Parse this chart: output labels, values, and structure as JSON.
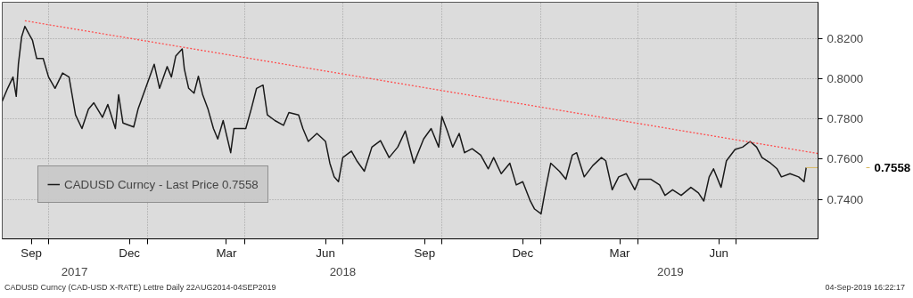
{
  "chart_data": {
    "type": "line",
    "x": [
      "2017-08-19",
      "2017-08-24",
      "2017-08-29",
      "2017-09-01",
      "2017-09-03",
      "2017-09-06",
      "2017-09-09",
      "2017-09-13",
      "2017-09-16",
      "2017-09-20",
      "2017-09-26",
      "2017-10-01",
      "2017-10-07",
      "2017-10-14",
      "2017-10-20",
      "2017-10-26",
      "2017-11-01",
      "2017-11-07",
      "2017-11-12",
      "2017-11-20",
      "2017-11-25",
      "2017-12-02",
      "2017-12-05",
      "2017-12-09",
      "2017-12-19",
      "2017-12-23",
      "2017-12-30",
      "2018-01-07",
      "2018-01-12",
      "2018-01-19",
      "2018-01-23",
      "2018-01-27",
      "2018-02-02",
      "2018-02-04",
      "2018-02-08",
      "2018-02-13",
      "2018-02-17",
      "2018-02-21",
      "2018-02-26",
      "2018-03-03",
      "2018-03-07",
      "2018-03-12",
      "2018-03-19",
      "2018-03-22",
      "2018-04-02",
      "2018-04-07",
      "2018-04-12",
      "2018-04-18",
      "2018-04-22",
      "2018-04-29",
      "2018-05-07",
      "2018-05-12",
      "2018-05-21",
      "2018-05-25",
      "2018-05-30",
      "2018-06-07",
      "2018-06-15",
      "2018-06-19",
      "2018-06-23",
      "2018-06-27",
      "2018-07-01",
      "2018-07-09",
      "2018-07-14",
      "2018-07-21",
      "2018-07-28",
      "2018-08-05",
      "2018-08-13",
      "2018-08-21",
      "2018-08-28",
      "2018-09-05",
      "2018-09-14",
      "2018-09-21",
      "2018-09-28",
      "2018-10-01",
      "2018-10-06",
      "2018-10-11",
      "2018-10-17",
      "2018-10-22",
      "2018-10-29",
      "2018-11-06",
      "2018-11-13",
      "2018-11-18",
      "2018-11-25",
      "2018-12-03",
      "2018-12-09",
      "2018-12-15",
      "2018-12-22",
      "2018-12-26",
      "2019-01-01",
      "2019-01-05",
      "2019-01-10",
      "2019-01-18",
      "2019-01-24",
      "2019-01-30",
      "2019-02-03",
      "2019-02-10",
      "2019-02-18",
      "2019-02-26",
      "2019-03-02",
      "2019-03-08",
      "2019-03-14",
      "2019-03-21",
      "2019-03-29",
      "2019-04-02",
      "2019-04-13",
      "2019-04-21",
      "2019-04-26",
      "2019-05-03",
      "2019-05-11",
      "2019-05-20",
      "2019-05-27",
      "2019-06-01",
      "2019-06-06",
      "2019-06-10",
      "2019-06-17",
      "2019-06-22",
      "2019-06-30",
      "2019-07-07",
      "2019-07-14",
      "2019-07-20",
      "2019-07-25",
      "2019-08-02",
      "2019-08-08",
      "2019-08-12",
      "2019-08-20",
      "2019-08-28",
      "2019-09-02",
      "2019-09-04"
    ],
    "series": [
      {
        "name": "CADUSD Curncy - Last Price 0.7558",
        "color": "#1a1a1a",
        "values": [
          0.7888,
          0.7952,
          0.8008,
          0.7912,
          0.8072,
          0.8208,
          0.826,
          0.822,
          0.8192,
          0.81,
          0.81,
          0.8008,
          0.7952,
          0.8028,
          0.8008,
          0.782,
          0.7752,
          0.7848,
          0.788,
          0.7808,
          0.7872,
          0.7752,
          0.792,
          0.778,
          0.776,
          0.7848,
          0.7952,
          0.8072,
          0.7952,
          0.806,
          0.8008,
          0.8112,
          0.8148,
          0.8048,
          0.7952,
          0.7928,
          0.8012,
          0.792,
          0.7848,
          0.7752,
          0.77,
          0.7792,
          0.7632,
          0.7752,
          0.7752,
          0.7848,
          0.7952,
          0.7968,
          0.782,
          0.7792,
          0.7768,
          0.7832,
          0.782,
          0.7752,
          0.7688,
          0.7728,
          0.7688,
          0.758,
          0.7512,
          0.7488,
          0.7608,
          0.764,
          0.7592,
          0.754,
          0.766,
          0.7692,
          0.7608,
          0.766,
          0.774,
          0.758,
          0.77,
          0.7752,
          0.766,
          0.7812,
          0.774,
          0.766,
          0.7728,
          0.7632,
          0.7652,
          0.762,
          0.7552,
          0.7608,
          0.7528,
          0.758,
          0.7472,
          0.7488,
          0.7392,
          0.7352,
          0.7328,
          0.7448,
          0.758,
          0.754,
          0.75,
          0.762,
          0.7632,
          0.7512,
          0.7568,
          0.7608,
          0.7592,
          0.7448,
          0.7512,
          0.7528,
          0.7448,
          0.75,
          0.75,
          0.7472,
          0.742,
          0.7448,
          0.742,
          0.746,
          0.7432,
          0.7392,
          0.7512,
          0.7552,
          0.746,
          0.7592,
          0.7648,
          0.766,
          0.7688,
          0.766,
          0.7608,
          0.758,
          0.7552,
          0.7512,
          0.7528,
          0.7512,
          0.7488,
          0.7558
        ]
      },
      {
        "type": "line",
        "color": "#ff4d4d",
        "line_style": "dotted",
        "x": [
          "2017-09-09",
          "2019-09-15"
        ],
        "values": [
          0.8288,
          0.7628
        ]
      }
    ],
    "xlim": [
      "2017-08-19",
      "2019-09-15"
    ],
    "xticks": [
      {
        "value": "2017-09-15",
        "label": "Sep"
      },
      {
        "value": "2017-10-01",
        "label": null
      },
      {
        "value": "2017-12-15",
        "label": "Dec"
      },
      {
        "value": "2018-01-01",
        "label": null
      },
      {
        "value": "2018-03-15",
        "label": "Mar"
      },
      {
        "value": "2018-04-01",
        "label": null
      },
      {
        "value": "2018-06-15",
        "label": "Jun"
      },
      {
        "value": "2018-07-01",
        "label": null
      },
      {
        "value": "2018-09-15",
        "label": "Sep"
      },
      {
        "value": "2018-10-01",
        "label": null
      },
      {
        "value": "2018-12-15",
        "label": "Dec"
      },
      {
        "value": "2019-01-01",
        "label": null
      },
      {
        "value": "2019-03-15",
        "label": "Mar"
      },
      {
        "value": "2019-04-01",
        "label": null
      },
      {
        "value": "2019-06-15",
        "label": "Jun"
      },
      {
        "value": "2019-07-01",
        "label": null
      }
    ],
    "x2lim": [
      "2017-08-19",
      "2019-09-15"
    ],
    "x2ticks": [
      {
        "value": "2017-10-25",
        "label": "2017"
      },
      {
        "value": "2018-07-01",
        "label": "2018"
      },
      {
        "value": "2019-05-01",
        "label": "2019"
      }
    ],
    "ylim": [
      0.7204,
      0.838
    ],
    "yticks": [
      {
        "value": 0.74,
        "label": "0.7400"
      },
      {
        "value": 0.76,
        "label": "0.7600"
      },
      {
        "value": 0.78,
        "label": "0.7800"
      },
      {
        "value": 0.8,
        "label": "0.8000"
      },
      {
        "value": 0.82,
        "label": "0.8200"
      }
    ],
    "grid": true,
    "legend": "bottom left",
    "ref_lines": [
      {
        "axis": "y",
        "value": 0.7558,
        "label": "0.7558",
        "color": "#d8b860"
      }
    ],
    "annotations": [
      "CADUSD Curncy (CAD-USD X-RATE) Lettre  Daily 22AUG2014-04SEP2019",
      "04-Sep-2019 16:22:17"
    ]
  }
}
